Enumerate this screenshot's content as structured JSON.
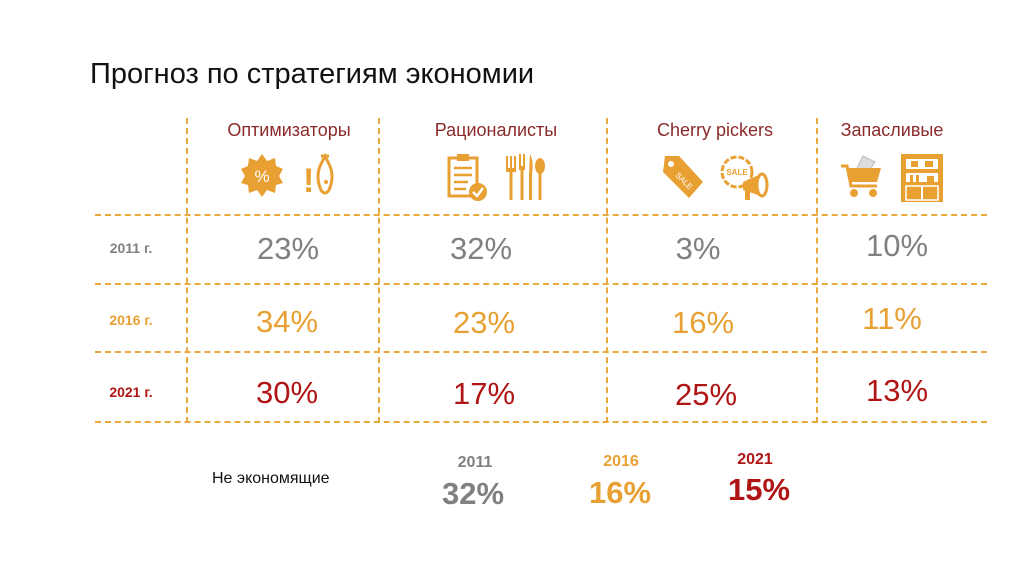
{
  "title": "Прогноз по стратегиям экономии",
  "colors": {
    "2011": "#808080",
    "2016": "#E8A033",
    "2021": "#B01515",
    "header": "#8B2A2A",
    "grid": "#E9A93E",
    "icon": "#E8A033"
  },
  "columns": [
    {
      "label": "Оптимизаторы",
      "icons": [
        "percent-badge-icon",
        "fish-icon"
      ]
    },
    {
      "label": "Рационалисты",
      "icons": [
        "checklist-clipboard-icon",
        "cutlery-icon"
      ]
    },
    {
      "label": "Cherry pickers",
      "icons": [
        "sale-tag-icon",
        "sale-megaphone-icon"
      ]
    },
    {
      "label": "Запасливые",
      "icons": [
        "shopping-cart-icon",
        "pantry-cabinet-icon"
      ]
    }
  ],
  "icon_text": {
    "percent": "%",
    "exclaim": "!",
    "sale": "SALE"
  },
  "rows": [
    {
      "label": "2011 г.",
      "values": [
        "23%",
        "32%",
        "3%",
        "10%"
      ]
    },
    {
      "label": "2016 г.",
      "values": [
        "34%",
        "23%",
        "16%",
        "11%"
      ]
    },
    {
      "label": "2021 г.",
      "values": [
        "30%",
        "17%",
        "25%",
        "13%"
      ]
    }
  ],
  "footer": {
    "label": "Не экономящие",
    "items": [
      {
        "year": "2011",
        "value": "32%"
      },
      {
        "year": "2016",
        "value": "16%"
      },
      {
        "year": "2021",
        "value": "15%"
      }
    ]
  },
  "chart_data": {
    "type": "table",
    "title": "Прогноз по стратегиям экономии",
    "columns": [
      "Оптимизаторы",
      "Рационалисты",
      "Cherry pickers",
      "Запасливые"
    ],
    "row_labels": [
      "2011 г.",
      "2016 г.",
      "2021 г."
    ],
    "values": [
      [
        23,
        32,
        3,
        10
      ],
      [
        34,
        23,
        16,
        11
      ],
      [
        30,
        17,
        25,
        13
      ]
    ],
    "unit": "%",
    "extra": {
      "label": "Не экономящие",
      "years": [
        "2011",
        "2016",
        "2021"
      ],
      "values": [
        32,
        16,
        15
      ]
    }
  }
}
